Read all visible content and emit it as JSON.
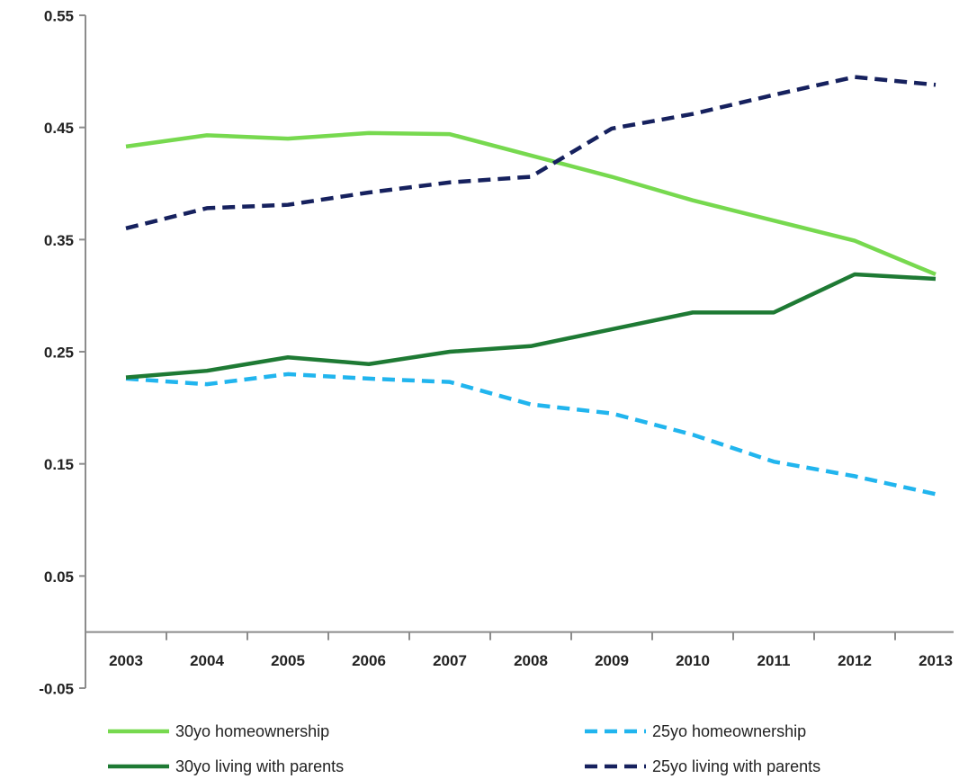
{
  "chart_data": {
    "type": "line",
    "categories": [
      "2003",
      "2004",
      "2005",
      "2006",
      "2007",
      "2008",
      "2009",
      "2010",
      "2011",
      "2012",
      "2013"
    ],
    "series": [
      {
        "name": "30yo homeownership",
        "color": "#77d94f",
        "dash": false,
        "values": [
          0.433,
          0.443,
          0.44,
          0.445,
          0.444,
          0.425,
          0.406,
          0.385,
          0.367,
          0.349,
          0.319
        ]
      },
      {
        "name": "25yo homeownership",
        "color": "#21b5ee",
        "dash": true,
        "values": [
          0.226,
          0.221,
          0.23,
          0.226,
          0.223,
          0.203,
          0.195,
          0.176,
          0.152,
          0.139,
          0.123
        ]
      },
      {
        "name": "30yo living with parents",
        "color": "#1e7a34",
        "dash": false,
        "values": [
          0.227,
          0.233,
          0.245,
          0.239,
          0.25,
          0.255,
          0.27,
          0.285,
          0.285,
          0.319,
          0.315
        ]
      },
      {
        "name": "25yo living with parents",
        "color": "#16215e",
        "dash": true,
        "values": [
          0.36,
          0.378,
          0.381,
          0.392,
          0.401,
          0.406,
          0.449,
          0.462,
          0.479,
          0.495,
          0.488
        ]
      }
    ],
    "ylim": [
      -0.05,
      0.55
    ],
    "yticks": [
      -0.05,
      0.05,
      0.15,
      0.25,
      0.35,
      0.45,
      0.55
    ],
    "grid": false,
    "legend": "bottom"
  }
}
